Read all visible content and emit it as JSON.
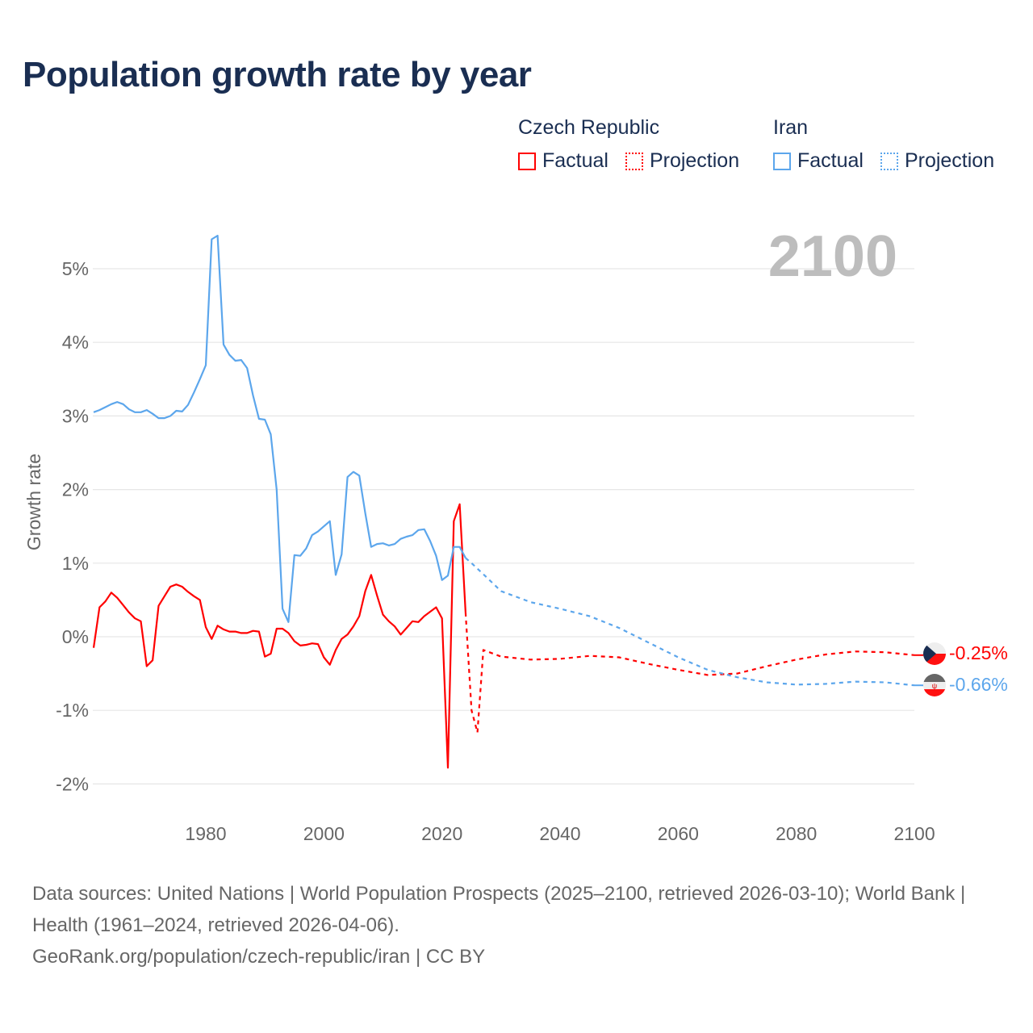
{
  "title": "Population growth rate by year",
  "legend": [
    {
      "group": "Czech Republic",
      "factual_label": "Factual",
      "projection_label": "Projection",
      "color": "#ff0000"
    },
    {
      "group": "Iran",
      "factual_label": "Factual",
      "projection_label": "Projection",
      "color": "#5ca6ec"
    }
  ],
  "year_watermark": "2100",
  "end_labels": {
    "czech": "-0.25%",
    "iran": "-0.66%"
  },
  "footer": {
    "sources": "Data sources: United Nations | World Population Prospects (2025–2100, retrieved 2026-03-10); World Bank | Health (1961–2024, retrieved 2026-04-06).",
    "credit": "GeoRank.org/population/czech-republic/iran | CC BY"
  },
  "chart_data": {
    "type": "line",
    "title": "Population growth rate by year",
    "xlabel": "",
    "ylabel": "Growth rate",
    "xlim": [
      1961,
      2100
    ],
    "ylim": [
      -2.2,
      5.6
    ],
    "grid": true,
    "legend_position": "top-right",
    "x_ticks": [
      1980,
      2000,
      2020,
      2040,
      2060,
      2080,
      2100
    ],
    "x_tick_labels": [
      "1980",
      "2000",
      "2020",
      "2040",
      "2060",
      "2080",
      "2100"
    ],
    "y_ticks": [
      -2,
      -1,
      0,
      1,
      2,
      3,
      4,
      5
    ],
    "y_tick_labels": [
      "-2%",
      "-1%",
      "0%",
      "1%",
      "2%",
      "3%",
      "4%",
      "5%"
    ],
    "series": [
      {
        "name": "Czech Republic Factual",
        "color": "#ff0000",
        "dashed": false,
        "x": [
          1961,
          1962,
          1963,
          1964,
          1965,
          1966,
          1967,
          1968,
          1969,
          1970,
          1971,
          1972,
          1973,
          1974,
          1975,
          1976,
          1977,
          1978,
          1979,
          1980,
          1981,
          1982,
          1983,
          1984,
          1985,
          1986,
          1987,
          1988,
          1989,
          1990,
          1991,
          1992,
          1993,
          1994,
          1995,
          1996,
          1997,
          1998,
          1999,
          2000,
          2001,
          2002,
          2003,
          2004,
          2005,
          2006,
          2007,
          2008,
          2009,
          2010,
          2011,
          2012,
          2013,
          2014,
          2015,
          2016,
          2017,
          2018,
          2019,
          2020,
          2021,
          2022,
          2023,
          2024
        ],
        "y": [
          -0.15,
          0.4,
          0.48,
          0.6,
          0.53,
          0.43,
          0.33,
          0.25,
          0.21,
          -0.4,
          -0.32,
          0.42,
          0.55,
          0.68,
          0.71,
          0.68,
          0.61,
          0.55,
          0.5,
          0.13,
          -0.03,
          0.15,
          0.1,
          0.07,
          0.07,
          0.05,
          0.05,
          0.08,
          0.07,
          -0.27,
          -0.23,
          0.11,
          0.11,
          0.05,
          -0.06,
          -0.12,
          -0.11,
          -0.09,
          -0.1,
          -0.28,
          -0.38,
          -0.18,
          -0.03,
          0.03,
          0.14,
          0.28,
          0.62,
          0.84,
          0.56,
          0.3,
          0.21,
          0.14,
          0.03,
          0.12,
          0.21,
          0.2,
          0.28,
          0.34,
          0.4,
          0.25,
          -1.78,
          1.57,
          1.8,
          0.33
        ]
      },
      {
        "name": "Czech Republic Projection",
        "color": "#ff0000",
        "dashed": true,
        "x": [
          2024,
          2025,
          2026,
          2027,
          2030,
          2035,
          2040,
          2045,
          2050,
          2055,
          2060,
          2065,
          2070,
          2075,
          2080,
          2085,
          2090,
          2095,
          2100
        ],
        "y": [
          0.33,
          -1.0,
          -1.3,
          -0.18,
          -0.27,
          -0.31,
          -0.3,
          -0.26,
          -0.28,
          -0.37,
          -0.45,
          -0.52,
          -0.5,
          -0.4,
          -0.31,
          -0.24,
          -0.2,
          -0.21,
          -0.25
        ]
      },
      {
        "name": "Iran Factual",
        "color": "#5ca6ec",
        "dashed": false,
        "x": [
          1961,
          1962,
          1963,
          1964,
          1965,
          1966,
          1967,
          1968,
          1969,
          1970,
          1971,
          1972,
          1973,
          1974,
          1975,
          1976,
          1977,
          1978,
          1979,
          1980,
          1981,
          1982,
          1983,
          1984,
          1985,
          1986,
          1987,
          1988,
          1989,
          1990,
          1991,
          1992,
          1993,
          1994,
          1995,
          1996,
          1997,
          1998,
          1999,
          2000,
          2001,
          2002,
          2003,
          2004,
          2005,
          2006,
          2007,
          2008,
          2009,
          2010,
          2011,
          2012,
          2013,
          2014,
          2015,
          2016,
          2017,
          2018,
          2019,
          2020,
          2021,
          2022,
          2023,
          2024
        ],
        "y": [
          3.05,
          3.08,
          3.12,
          3.16,
          3.19,
          3.16,
          3.09,
          3.05,
          3.05,
          3.08,
          3.03,
          2.97,
          2.97,
          3.0,
          3.07,
          3.06,
          3.15,
          3.32,
          3.5,
          3.69,
          5.4,
          5.45,
          3.97,
          3.83,
          3.75,
          3.76,
          3.65,
          3.28,
          2.96,
          2.95,
          2.75,
          2.0,
          0.38,
          0.2,
          1.11,
          1.1,
          1.2,
          1.38,
          1.43,
          1.5,
          1.57,
          0.84,
          1.12,
          2.17,
          2.24,
          2.19,
          1.68,
          1.22,
          1.26,
          1.27,
          1.24,
          1.26,
          1.33,
          1.36,
          1.38,
          1.45,
          1.46,
          1.3,
          1.1,
          0.77,
          0.83,
          1.22,
          1.22,
          1.07
        ]
      },
      {
        "name": "Iran Projection",
        "color": "#5ca6ec",
        "dashed": true,
        "x": [
          2024,
          2025,
          2027,
          2030,
          2035,
          2040,
          2045,
          2050,
          2055,
          2060,
          2065,
          2070,
          2075,
          2080,
          2085,
          2090,
          2095,
          2100
        ],
        "y": [
          1.07,
          1.0,
          0.85,
          0.62,
          0.47,
          0.38,
          0.28,
          0.12,
          -0.08,
          -0.28,
          -0.45,
          -0.55,
          -0.62,
          -0.65,
          -0.64,
          -0.61,
          -0.62,
          -0.66
        ]
      }
    ]
  }
}
